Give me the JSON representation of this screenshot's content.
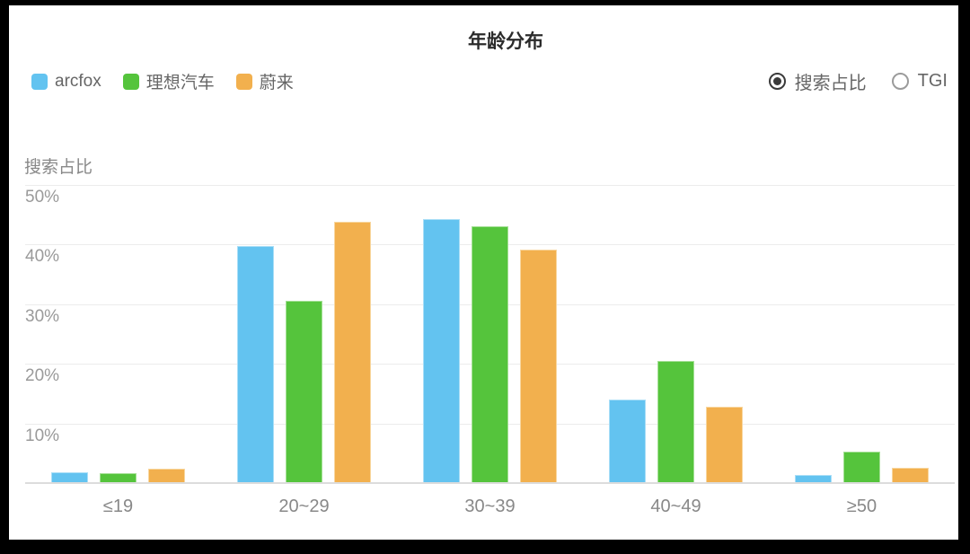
{
  "title": "年龄分布",
  "controls": {
    "options": [
      {
        "label": "搜索占比",
        "selected": true
      },
      {
        "label": "TGI",
        "selected": false
      }
    ]
  },
  "chart_data": {
    "type": "bar",
    "title": "年龄分布",
    "xlabel": "",
    "ylabel": "搜索占比",
    "categories": [
      "≤19",
      "20~29",
      "30~39",
      "40~49",
      "≥50"
    ],
    "series": [
      {
        "name": "arcfox",
        "color": "#63c3f0",
        "border_color": "#a9def7",
        "values": [
          1.8,
          39.8,
          44.3,
          14.0,
          1.3
        ]
      },
      {
        "name": "理想汽车",
        "color": "#55c43c",
        "border_color": "#a4e095",
        "values": [
          1.6,
          30.5,
          43.0,
          20.5,
          5.2
        ]
      },
      {
        "name": "蔚来",
        "color": "#f2b04e",
        "border_color": "#f8d69e",
        "values": [
          2.4,
          43.9,
          39.1,
          12.8,
          2.6
        ]
      }
    ],
    "ylim": [
      0,
      50
    ],
    "yticks": [
      {
        "label": "50%",
        "value": 50
      },
      {
        "label": "40%",
        "value": 40
      },
      {
        "label": "30%",
        "value": 30
      },
      {
        "label": "20%",
        "value": 20
      },
      {
        "label": "10%",
        "value": 10
      }
    ],
    "grid": true,
    "legend_position": "top-left",
    "grid_color": "#ececec",
    "axis_line_color": "#dcdcdc"
  }
}
